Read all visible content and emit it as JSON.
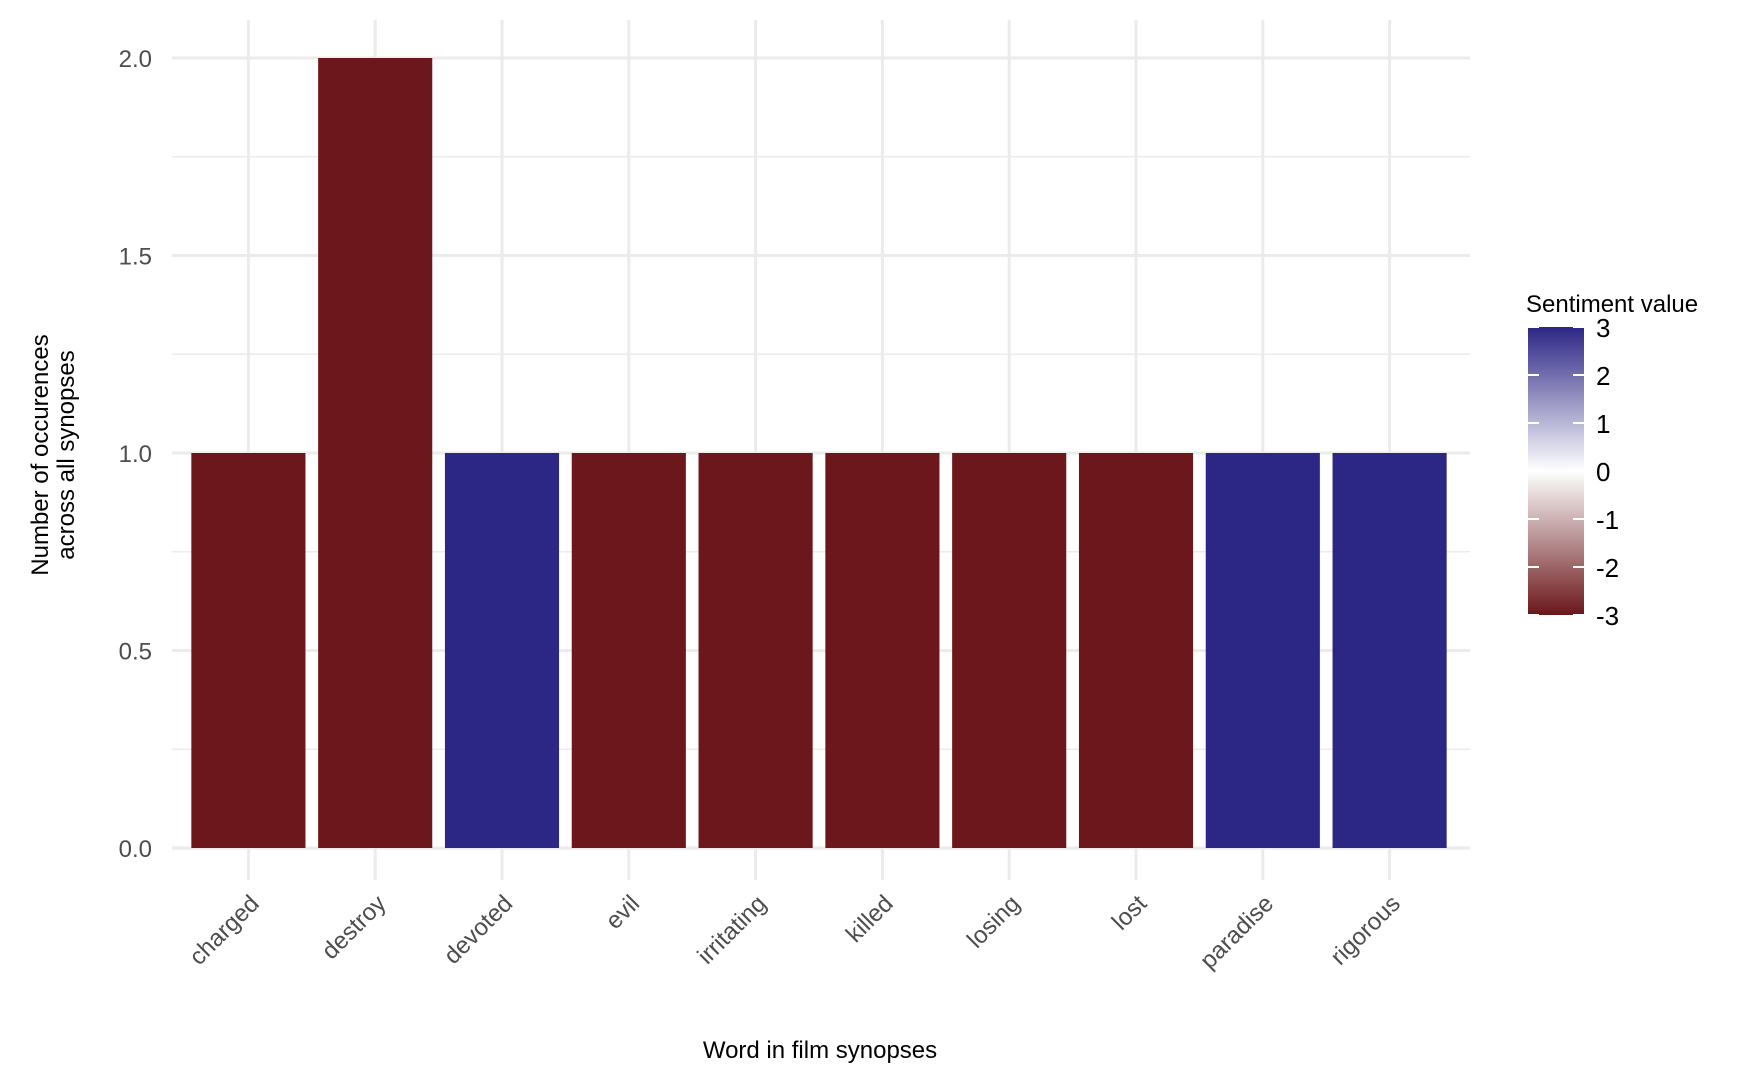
{
  "chart_data": {
    "type": "bar",
    "title": "",
    "xlabel": "Word in film synopses",
    "ylabel_lines": [
      "Number of occurences",
      "across all synopses"
    ],
    "categories": [
      "charged",
      "destroy",
      "devoted",
      "evil",
      "irritating",
      "killed",
      "losing",
      "lost",
      "paradise",
      "rigorous"
    ],
    "values": [
      1,
      2,
      1,
      1,
      1,
      1,
      1,
      1,
      1,
      1
    ],
    "sentiment": [
      -3,
      -3,
      3,
      -3,
      -3,
      -3,
      -3,
      -3,
      3,
      3
    ],
    "ylim": [
      0,
      2
    ],
    "yticks": [
      0.0,
      0.5,
      1.0,
      1.5,
      2.0
    ],
    "ytick_labels": [
      "0.0",
      "0.5",
      "1.0",
      "1.5",
      "2.0"
    ],
    "grid": true,
    "legend": {
      "title": "Sentiment value",
      "placement": "right",
      "ticks": [
        3,
        2,
        1,
        0,
        -1,
        -2,
        -3
      ],
      "tick_labels": [
        "3",
        "2",
        "1",
        "0",
        "-1",
        "-2",
        "-3"
      ],
      "range": [
        -3,
        3
      ]
    },
    "colors": {
      "negative": "#6b171b",
      "neutral": "#ffffff",
      "positive": "#2c2684"
    }
  }
}
